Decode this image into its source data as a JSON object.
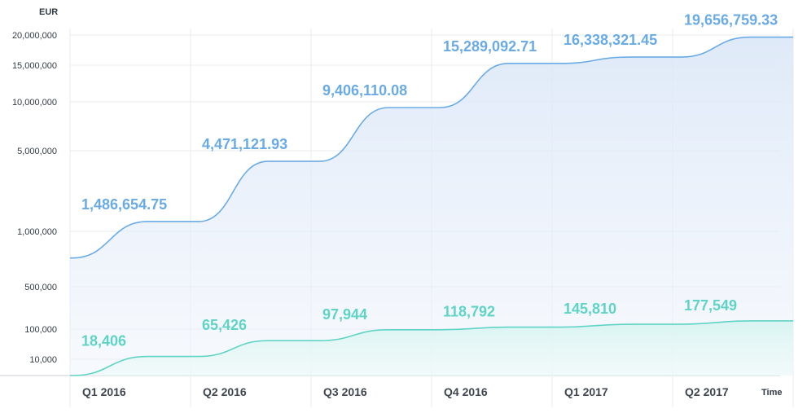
{
  "chart_data": {
    "type": "area",
    "ylabel": "EUR",
    "xlabel": "Time",
    "categories": [
      "Q1 2016",
      "Q2 2016",
      "Q3 2016",
      "Q4 2016",
      "Q1 2017",
      "Q2 2017"
    ],
    "y_ticks": [
      "20,000,000",
      "15,000,000",
      "10,000,000",
      "5,000,000",
      "1,000,000",
      "500,000",
      "100,000",
      "10,000"
    ],
    "y_scale": "nonlinear (tick positions not evenly scaled)",
    "grid": true,
    "series": [
      {
        "values": [
          1486654.75,
          4471121.93,
          9406110.08,
          15289092.71,
          16338321.45,
          19656759.33
        ],
        "labels": [
          "1,486,654.75",
          "4,471,121.93",
          "9,406,110.08",
          "15,289,092.71",
          "16,338,321.45",
          "19,656,759.33"
        ],
        "color": "#6aabe6"
      },
      {
        "values": [
          18406,
          65426,
          97944,
          118792,
          145810,
          177549
        ],
        "labels": [
          "18,406",
          "65,426",
          "97,944",
          "118,792",
          "145,810",
          "177,549"
        ],
        "color": "#5fd4c6"
      }
    ]
  }
}
